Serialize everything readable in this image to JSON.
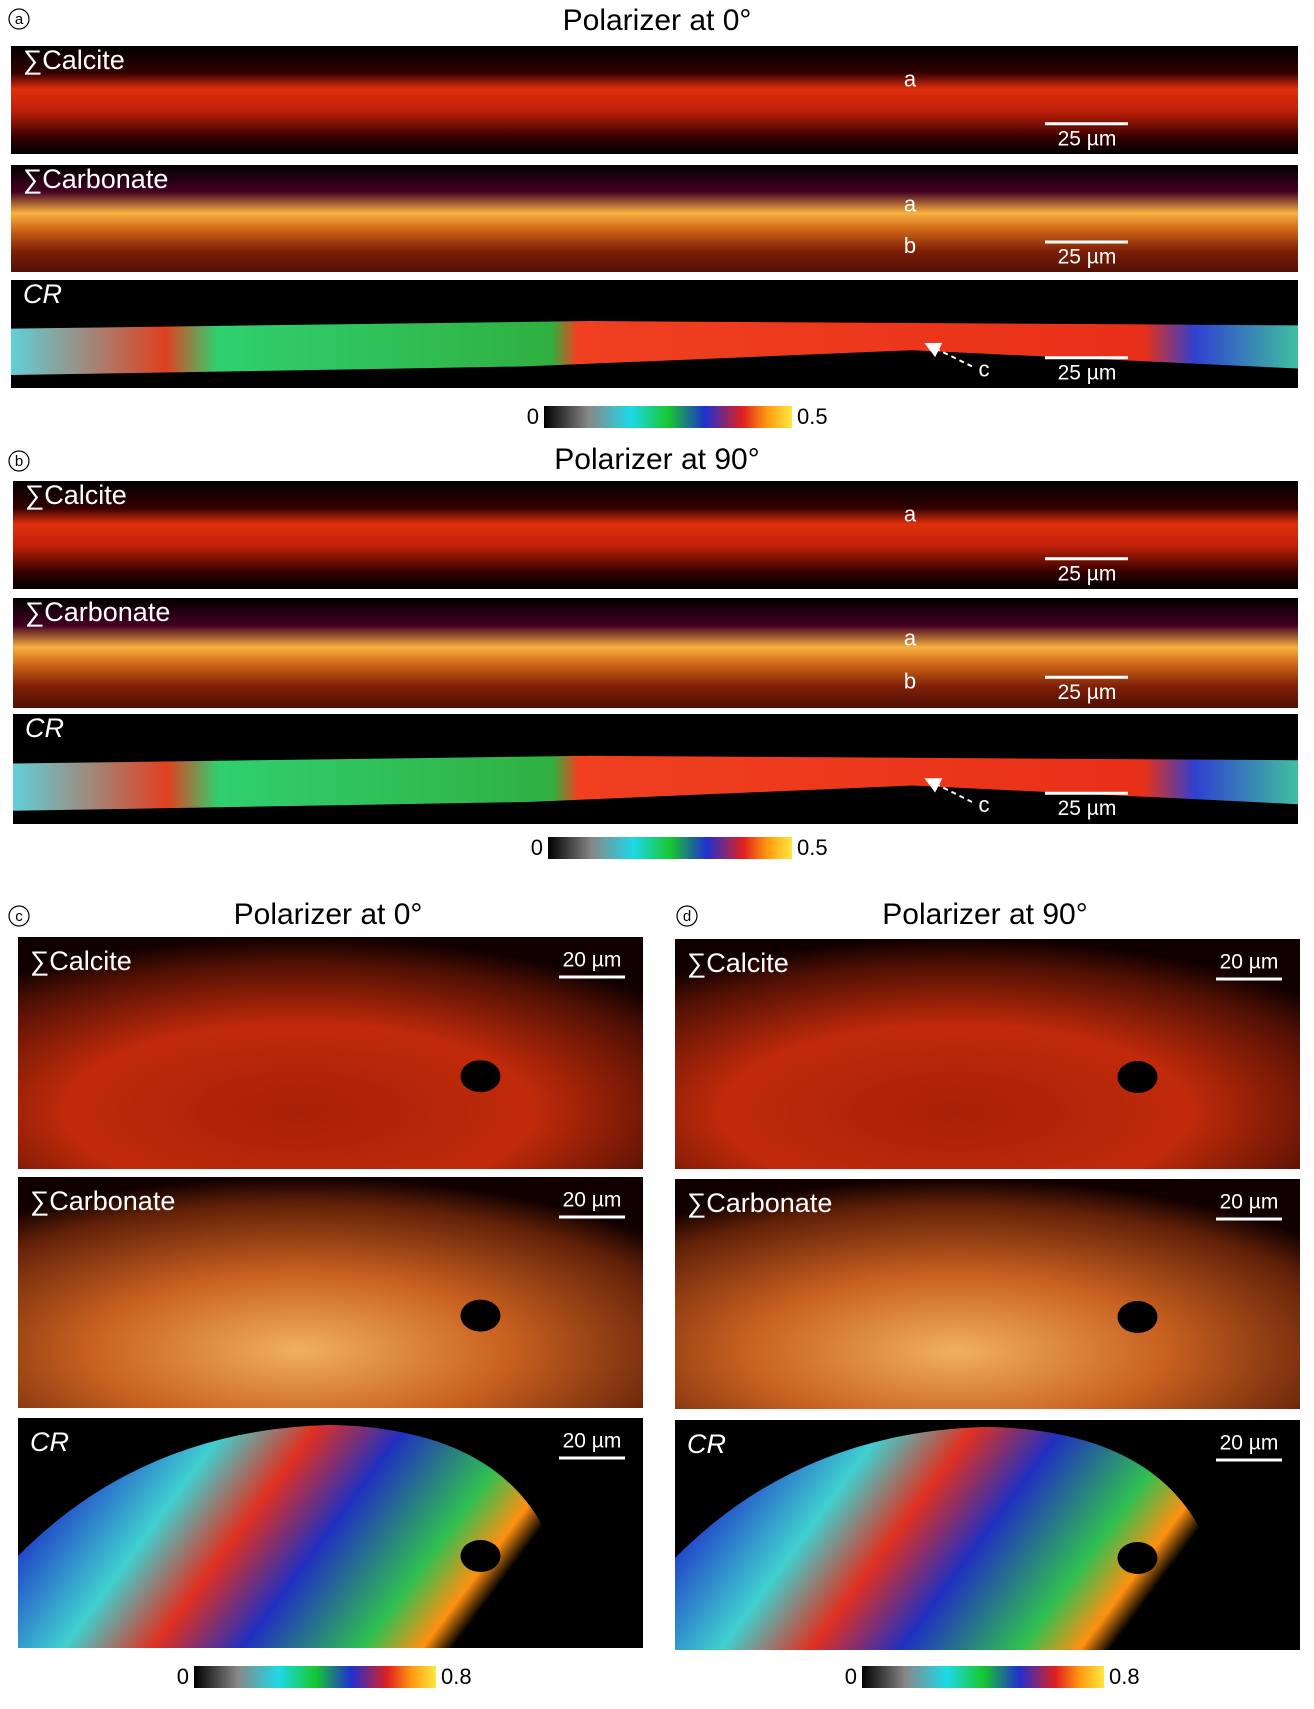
{
  "panels": [
    {
      "label": "a",
      "title": "Polarizer at 0°",
      "maps": [
        {
          "label": "∑Calcite",
          "scale_bar": "25 µm",
          "markers": [
            "a"
          ]
        },
        {
          "label": "∑Carbonate",
          "scale_bar": "25 µm",
          "markers": [
            "a",
            "b"
          ]
        },
        {
          "label": "CR",
          "scale_bar": "25 µm",
          "markers": [
            "c"
          ]
        }
      ],
      "colorbar": {
        "min": 0,
        "max": 0.5
      }
    },
    {
      "label": "b",
      "title": "Polarizer at 90°",
      "maps": [
        {
          "label": "∑Calcite",
          "scale_bar": "25 µm",
          "markers": [
            "a"
          ]
        },
        {
          "label": "∑Carbonate",
          "scale_bar": "25 µm",
          "markers": [
            "a",
            "b"
          ]
        },
        {
          "label": "CR",
          "scale_bar": "25 µm",
          "markers": [
            "c"
          ]
        }
      ],
      "colorbar": {
        "min": 0,
        "max": 0.5
      }
    },
    {
      "label": "c",
      "title": "Polarizer at 0°",
      "maps": [
        {
          "label": "∑Calcite",
          "scale_bar": "20 µm",
          "markers": []
        },
        {
          "label": "∑Carbonate",
          "scale_bar": "20 µm",
          "markers": []
        },
        {
          "label": "CR",
          "scale_bar": "20 µm",
          "markers": []
        }
      ],
      "colorbar": {
        "min": 0,
        "max": 0.8
      }
    },
    {
      "label": "d",
      "title": "Polarizer at 90°",
      "maps": [
        {
          "label": "∑Calcite",
          "scale_bar": "20 µm",
          "markers": []
        },
        {
          "label": "∑Carbonate",
          "scale_bar": "20 µm",
          "markers": []
        },
        {
          "label": "CR",
          "scale_bar": "20 µm",
          "markers": []
        }
      ],
      "colorbar": {
        "min": 0,
        "max": 0.8
      }
    }
  ]
}
